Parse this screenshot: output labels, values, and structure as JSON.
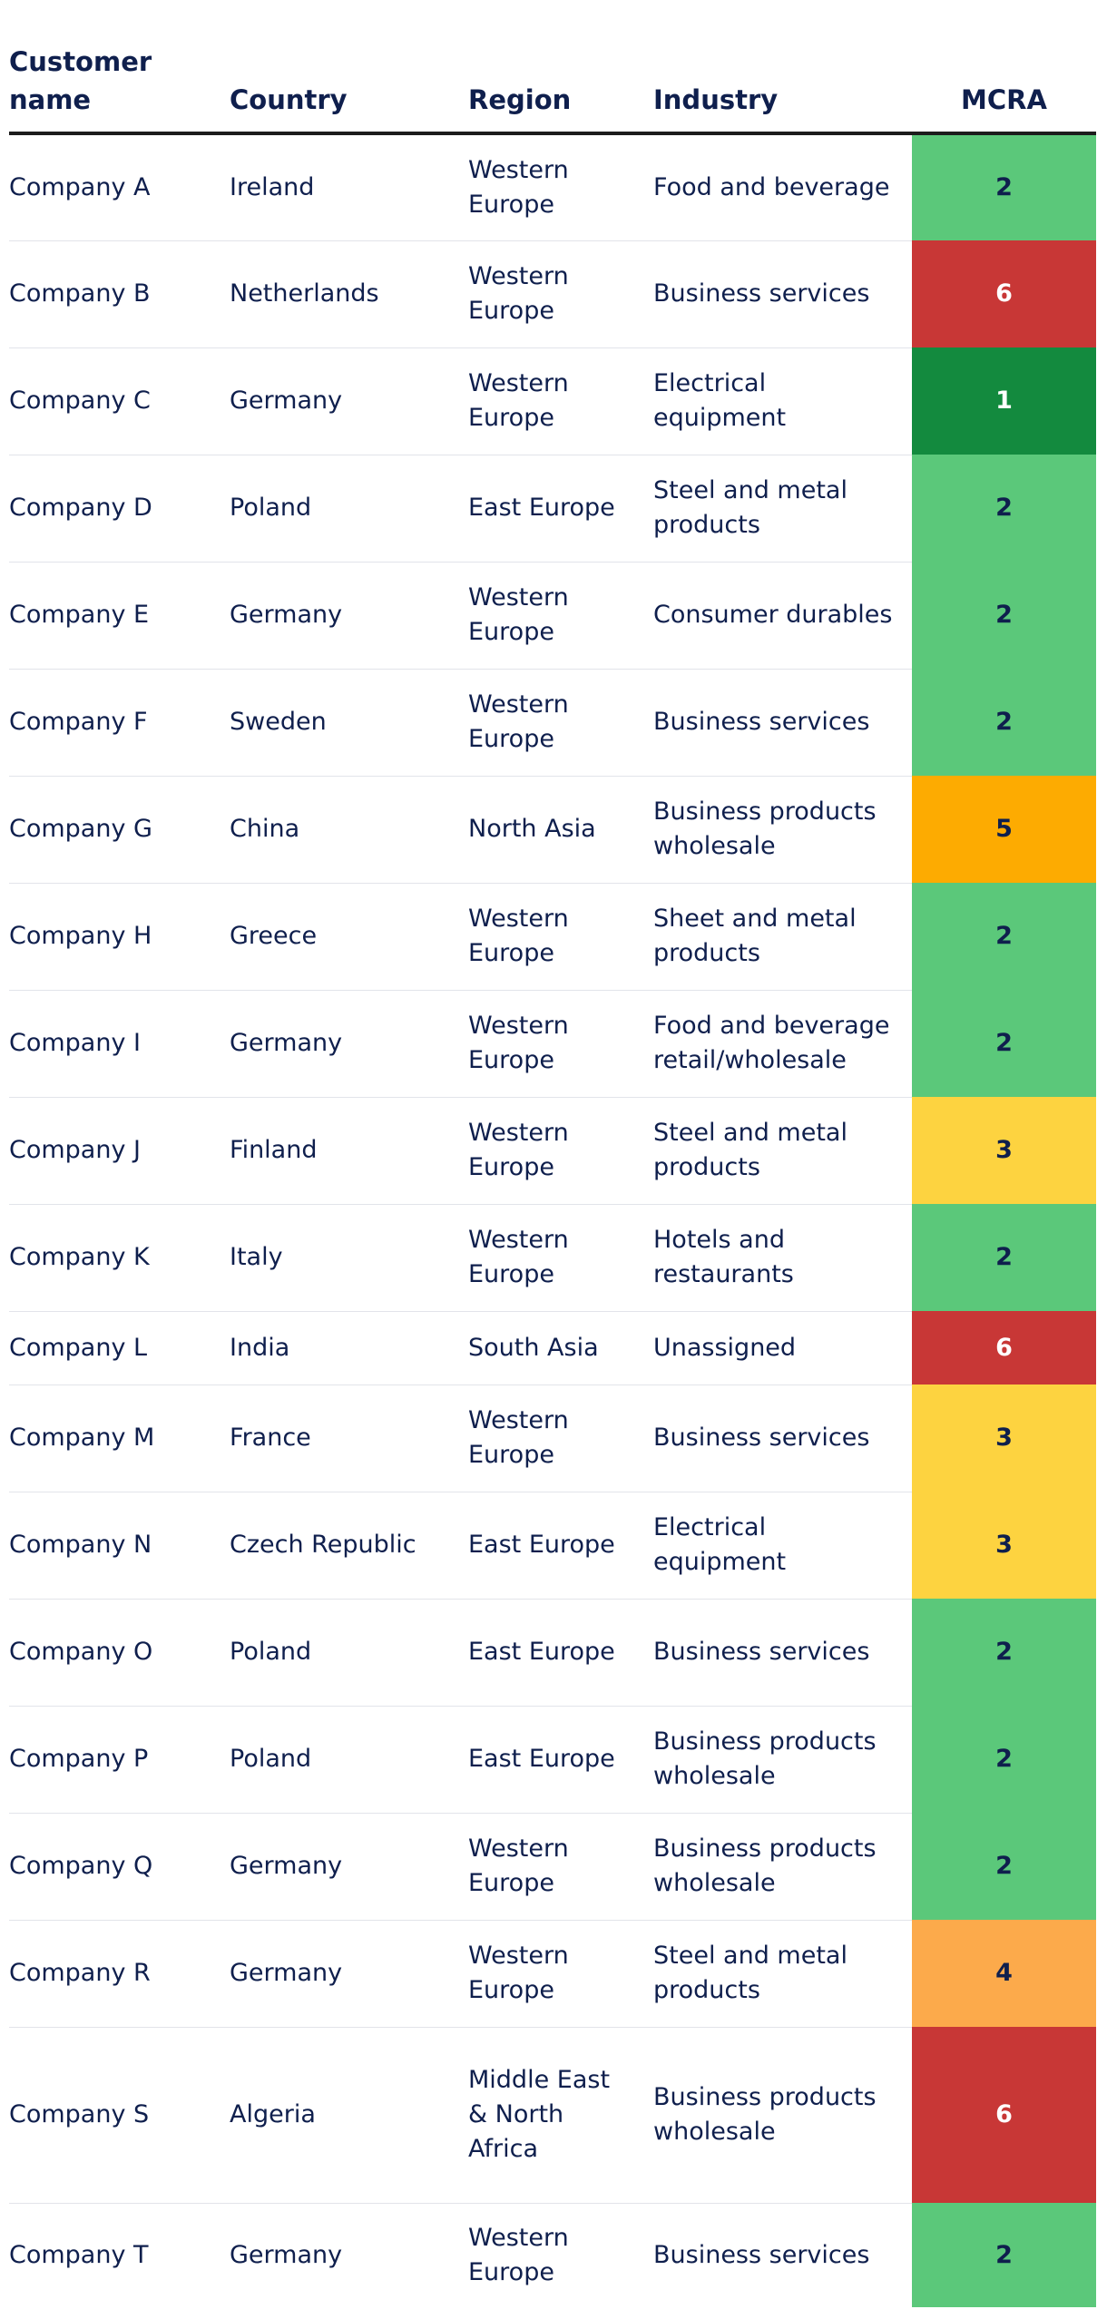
{
  "table": {
    "headers": {
      "customer_name": "Customer name",
      "country": "Country",
      "region": "Region",
      "industry": "Industry",
      "mcra": "MCRA"
    },
    "rating_colors": {
      "1": "#138a3e",
      "2": "#5bc87a",
      "3": "#fdd340",
      "4": "#fcaa4b",
      "5": "#fdab01",
      "6": "#c83736"
    },
    "rating_text_colors": {
      "1": "#ffffff",
      "2": "#0f1f4d",
      "3": "#0f1f4d",
      "4": "#0f1f4d",
      "5": "#0f1f4d",
      "6": "#ffffff"
    },
    "rows": [
      {
        "name": "Company A",
        "country": "Ireland",
        "region": "Western Europe",
        "industry": "Food and beverage",
        "mcra": "2"
      },
      {
        "name": "Company B",
        "country": "Netherlands",
        "region": "Western Europe",
        "industry": "Business services",
        "mcra": "6"
      },
      {
        "name": "Company C",
        "country": "Germany",
        "region": "Western Europe",
        "industry": "Electrical equipment",
        "mcra": "1"
      },
      {
        "name": "Company D",
        "country": "Poland",
        "region": "East Europe",
        "industry": "Steel and metal products",
        "mcra": "2"
      },
      {
        "name": "Company E",
        "country": "Germany",
        "region": "Western Europe",
        "industry": "Consumer durables",
        "mcra": "2"
      },
      {
        "name": "Company F",
        "country": "Sweden",
        "region": "Western Europe",
        "industry": "Business services",
        "mcra": "2"
      },
      {
        "name": "Company G",
        "country": "China",
        "region": "North Asia",
        "industry": "Business products wholesale",
        "mcra": "5"
      },
      {
        "name": "Company H",
        "country": "Greece",
        "region": "Western Europe",
        "industry": "Sheet and metal products",
        "mcra": "2"
      },
      {
        "name": "Company I",
        "country": "Germany",
        "region": "Western Europe",
        "industry": "Food and beverage retail/wholesale",
        "mcra": "2"
      },
      {
        "name": "Company J",
        "country": "Finland",
        "region": "Western Europe",
        "industry": "Steel and metal products",
        "mcra": "3"
      },
      {
        "name": "Company K",
        "country": "Italy",
        "region": "Western Europe",
        "industry": "Hotels and restaurants",
        "mcra": "2"
      },
      {
        "name": "Company L",
        "country": "India",
        "region": "South Asia",
        "industry": "Unassigned",
        "mcra": "6"
      },
      {
        "name": "Company M",
        "country": "France",
        "region": "Western Europe",
        "industry": "Business services",
        "mcra": "3"
      },
      {
        "name": "Company N",
        "country": "Czech Republic",
        "region": "East Europe",
        "industry": "Electrical equipment",
        "mcra": "3"
      },
      {
        "name": "Company O",
        "country": "Poland",
        "region": "East Europe",
        "industry": "Business services",
        "mcra": "2"
      },
      {
        "name": "Company P",
        "country": "Poland",
        "region": "East Europe",
        "industry": "Business products wholesale",
        "mcra": "2"
      },
      {
        "name": "Company Q",
        "country": "Germany",
        "region": "Western Europe",
        "industry": "Business products wholesale",
        "mcra": "2"
      },
      {
        "name": "Company R",
        "country": "Germany",
        "region": "Western Europe",
        "industry": "Steel and metal products",
        "mcra": "4"
      },
      {
        "name": "Company S",
        "country": "Algeria",
        "region": "Middle East & North Africa",
        "industry": "Business products wholesale",
        "mcra": "6"
      },
      {
        "name": "Company T",
        "country": "Germany",
        "region": "Western Europe",
        "industry": "Business services",
        "mcra": "2"
      }
    ]
  }
}
